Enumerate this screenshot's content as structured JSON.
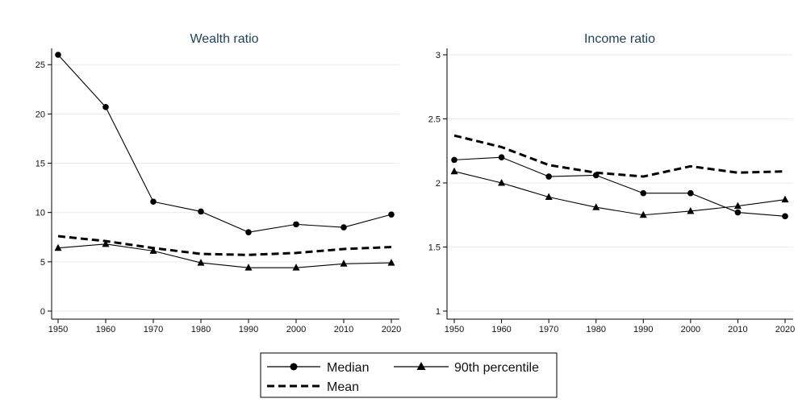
{
  "chart_data": [
    {
      "type": "line",
      "title": "Wealth ratio",
      "xlabel": "",
      "ylabel": "",
      "x": [
        1950,
        1960,
        1970,
        1980,
        1990,
        2000,
        2010,
        2020
      ],
      "xlim": [
        1950,
        2020
      ],
      "ylim": [
        0,
        26
      ],
      "xticks": [
        "1950",
        "1960",
        "1970",
        "1980",
        "1990",
        "2000",
        "2010",
        "2020"
      ],
      "yticks": [
        0,
        5,
        10,
        15,
        20,
        25
      ],
      "ytick_labels": [
        "0",
        "5",
        "10",
        "15",
        "20",
        "25"
      ],
      "grid": true,
      "series": [
        {
          "name": "Median",
          "style": "solid",
          "marker": "circle",
          "color": "#000000",
          "values": [
            26.0,
            20.7,
            11.1,
            10.1,
            8.0,
            8.8,
            8.5,
            9.8
          ]
        },
        {
          "name": "90th percentile",
          "style": "solid",
          "marker": "triangle",
          "color": "#000000",
          "values": [
            6.4,
            6.8,
            6.1,
            4.9,
            4.4,
            4.4,
            4.8,
            4.9
          ]
        },
        {
          "name": "Mean",
          "style": "dashed",
          "marker": "none",
          "color": "#000000",
          "values": [
            7.6,
            7.1,
            6.4,
            5.8,
            5.7,
            5.9,
            6.3,
            6.5
          ]
        }
      ]
    },
    {
      "type": "line",
      "title": "Income ratio",
      "xlabel": "",
      "ylabel": "",
      "x": [
        1950,
        1960,
        1970,
        1980,
        1990,
        2000,
        2010,
        2020
      ],
      "xlim": [
        1950,
        2020
      ],
      "ylim": [
        1,
        3
      ],
      "xticks": [
        "1950",
        "1960",
        "1970",
        "1980",
        "1990",
        "2000",
        "2010",
        "2020"
      ],
      "yticks": [
        1,
        1.5,
        2,
        2.5,
        3
      ],
      "ytick_labels": [
        "1",
        "1.5",
        "2",
        "2.5",
        "3"
      ],
      "grid": true,
      "series": [
        {
          "name": "Median",
          "style": "solid",
          "marker": "circle",
          "color": "#000000",
          "values": [
            2.18,
            2.2,
            2.05,
            2.06,
            1.92,
            1.92,
            1.77,
            1.74
          ]
        },
        {
          "name": "90th percentile",
          "style": "solid",
          "marker": "triangle",
          "color": "#000000",
          "values": [
            2.09,
            2.0,
            1.89,
            1.81,
            1.75,
            1.78,
            1.82,
            1.87
          ]
        },
        {
          "name": "Mean",
          "style": "dashed",
          "marker": "none",
          "color": "#000000",
          "values": [
            2.37,
            2.28,
            2.14,
            2.08,
            2.05,
            2.13,
            2.08,
            2.09
          ]
        }
      ]
    }
  ],
  "legend": {
    "placement": "bottom",
    "items": [
      {
        "label": "Median",
        "marker": "circle",
        "style": "solid"
      },
      {
        "label": "90th percentile",
        "marker": "triangle",
        "style": "solid"
      },
      {
        "label": "Mean",
        "marker": "none",
        "style": "dashed"
      }
    ]
  }
}
